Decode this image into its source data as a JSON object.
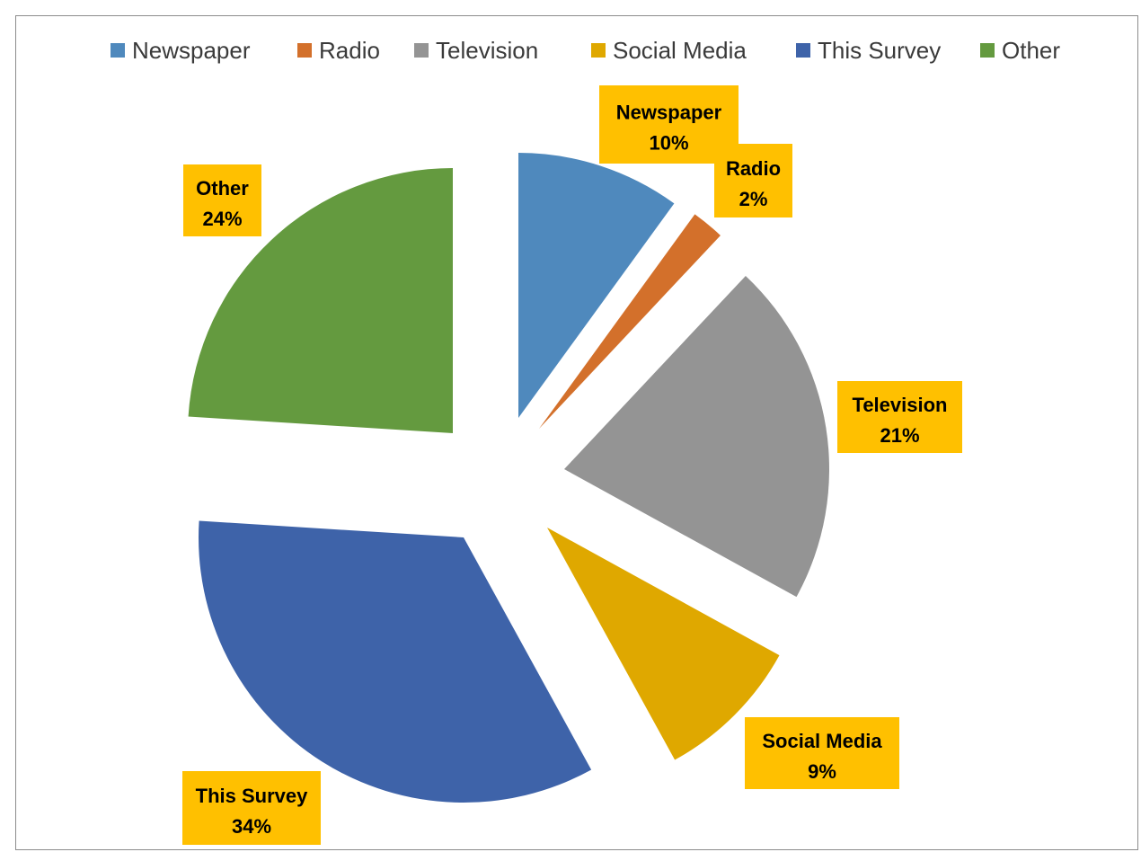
{
  "chart_data": {
    "type": "pie",
    "exploded": true,
    "legend_position": "top",
    "slices": [
      {
        "name": "Newspaper",
        "percent": 10,
        "label": "Newspaper",
        "value_label": "10%",
        "color": "#4f89bd"
      },
      {
        "name": "Radio",
        "percent": 2,
        "label": "Radio",
        "value_label": "2%",
        "color": "#d3702b"
      },
      {
        "name": "Television",
        "percent": 21,
        "label": "Television",
        "value_label": "21%",
        "color": "#949494"
      },
      {
        "name": "Social Media",
        "percent": 9,
        "label": "Social Media",
        "value_label": "9%",
        "color": "#dfa800"
      },
      {
        "name": "This Survey",
        "percent": 34,
        "label": "This Survey",
        "value_label": "34%",
        "color": "#3e63a9"
      },
      {
        "name": "Other",
        "percent": 24,
        "label": "Other",
        "value_label": "24%",
        "color": "#649a3f"
      }
    ],
    "label_background": "#ffc000"
  }
}
